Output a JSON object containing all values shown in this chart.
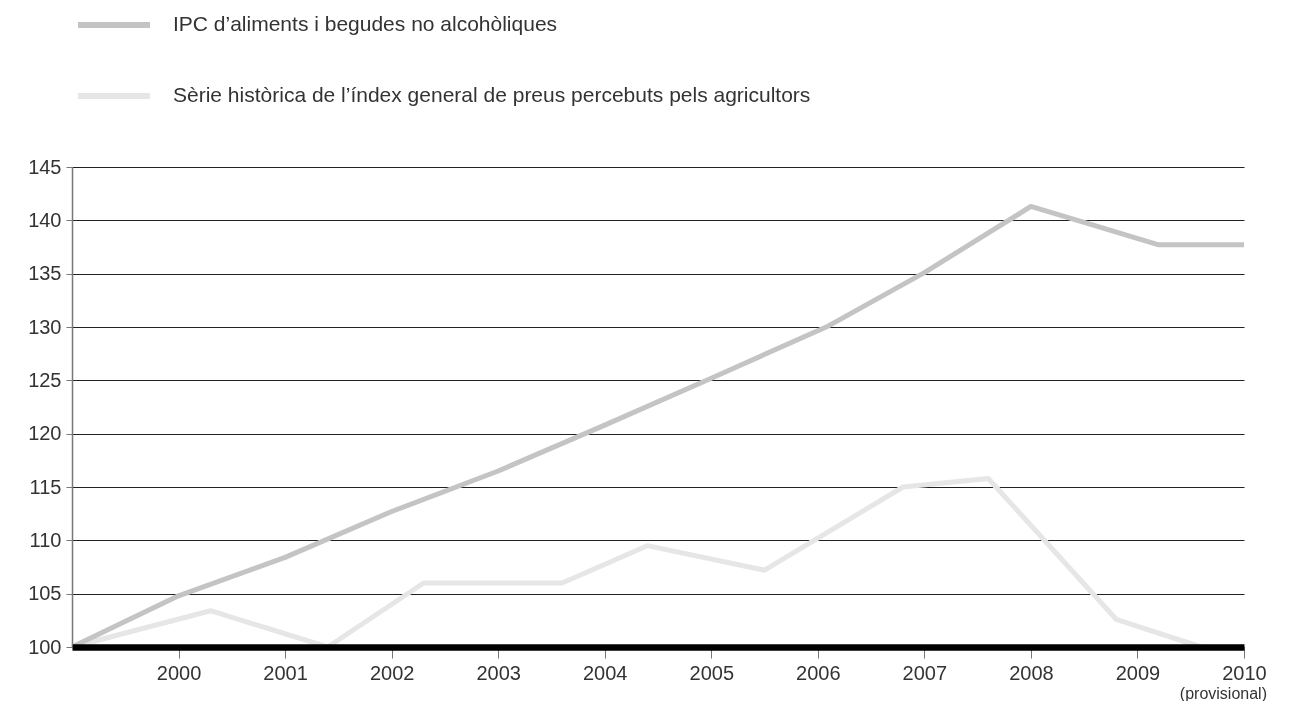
{
  "chart_data": {
    "type": "line",
    "series": [
      {
        "name": "IPC d’aliments i begudes no alcohòliques",
        "color": "#c4c4c4",
        "x": [
          1999,
          2000,
          2001,
          2002,
          2003,
          2004,
          2005,
          2006.1,
          2007,
          2008,
          2009.2,
          2010
        ],
        "values": [
          100,
          104.8,
          108.4,
          112.7,
          116.5,
          120.8,
          125.2,
          130.1,
          135.1,
          141.3,
          137.7,
          137.7
        ]
      },
      {
        "name": "Sèrie històrica de l’índex general de preus percebuts pels agricultors",
        "color": "#e6e6e6",
        "x": [
          1999,
          2000.3,
          2001.4,
          2002.3,
          2003.6,
          2004.4,
          2005.5,
          2006.8,
          2007.6,
          2008.8,
          2009.6,
          2010
        ],
        "values": [
          100,
          103.4,
          100,
          106,
          106,
          109.5,
          107.2,
          115,
          115.8,
          102.6,
          100,
          100
        ]
      }
    ],
    "xlim": [
      1999,
      2010
    ],
    "xticks": [
      2000,
      2001,
      2002,
      2003,
      2004,
      2005,
      2006,
      2007,
      2008,
      2009,
      2010
    ],
    "ylim": [
      100,
      145
    ],
    "yticks": [
      100,
      105,
      110,
      115,
      120,
      125,
      130,
      135,
      140,
      145
    ],
    "grid": "y",
    "legend": "top left",
    "annotations": [
      "(provisional)"
    ]
  }
}
